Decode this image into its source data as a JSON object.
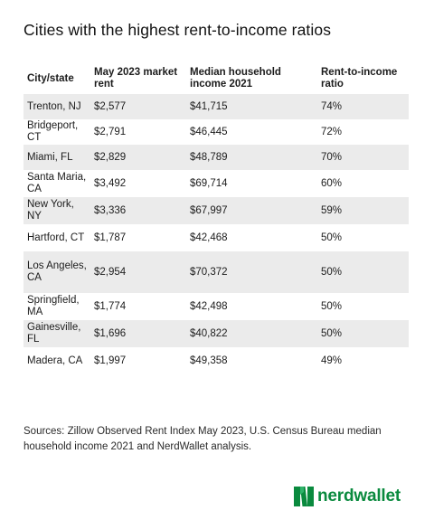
{
  "title": "Cities with the highest rent-to-income ratios",
  "table": {
    "headers": [
      "City/state",
      "May 2023 market rent",
      "Median household income 2021",
      "Rent-to-income ratio"
    ],
    "rows": [
      [
        "Trenton, NJ",
        "$2,577",
        "$41,715",
        "74%"
      ],
      [
        "Bridgeport, CT",
        "$2,791",
        "$46,445",
        "72%"
      ],
      [
        "Miami, FL",
        "$2,829",
        "$48,789",
        "70%"
      ],
      [
        "Santa Maria, CA",
        "$3,492",
        "$69,714",
        "60%"
      ],
      [
        "New York, NY",
        "$3,336",
        "$67,997",
        "59%"
      ],
      [
        "Hartford, CT",
        "$1,787",
        "$42,468",
        "50%"
      ],
      [
        "Los Angeles, CA",
        "$2,954",
        "$70,372",
        "50%"
      ],
      [
        "Springfield, MA",
        "$1,774",
        "$42,498",
        "50%"
      ],
      [
        "Gainesville, FL",
        "$1,696",
        "$40,822",
        "50%"
      ],
      [
        "Madera, CA",
        "$1,997",
        "$49,358",
        "49%"
      ]
    ]
  },
  "sources": "Sources: Zillow Observed Rent Index May 2023, U.S. Census Bureau median household income 2021 and NerdWallet analysis.",
  "logo": {
    "text": "nerdwallet",
    "icon": "nerdwallet-n-logo-icon",
    "brand_color": "#0a8a3e"
  }
}
